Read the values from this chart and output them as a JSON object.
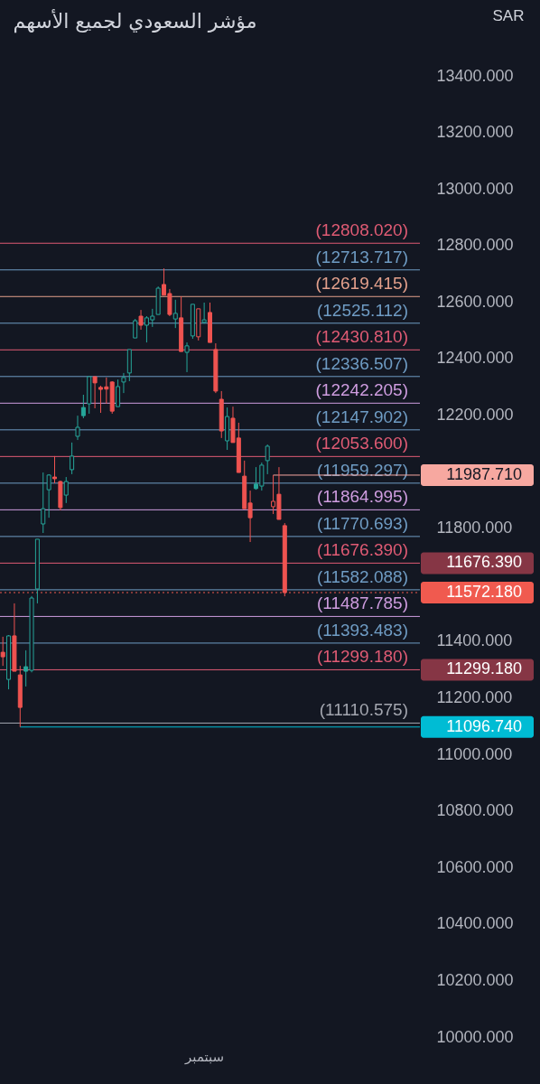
{
  "chart_data": {
    "type": "candlestick",
    "title": "مؤشر السعودي لجميع الأسهم",
    "ylabel": "SAR",
    "categories": [
      null,
      null,
      null,
      null,
      null,
      null,
      null,
      null,
      null,
      null,
      null,
      null,
      null,
      null,
      null,
      null,
      null,
      null,
      null,
      null,
      null,
      null,
      null,
      null,
      null,
      null,
      null,
      null,
      null,
      null,
      null,
      null,
      null,
      null,
      null,
      "سبتمبر",
      null,
      null,
      null,
      null,
      null,
      null,
      null,
      null,
      null,
      null,
      null,
      null,
      null,
      null,
      null,
      null,
      null,
      null,
      null,
      null,
      null,
      null,
      null,
      null,
      null,
      null,
      null,
      null,
      null,
      null,
      null,
      null,
      null,
      null,
      null,
      null,
      null
    ],
    "ohlc": [
      [
        11361,
        11416,
        11313,
        11345
      ],
      [
        11265,
        11422,
        11230,
        11419
      ],
      [
        11419,
        11534,
        11294,
        11294
      ],
      [
        11281,
        11313,
        11096.74,
        11166
      ],
      [
        11310,
        11368,
        11240,
        11294
      ],
      [
        11297,
        11560,
        11290,
        11553
      ],
      [
        11585,
        11761,
        11534,
        11761
      ],
      [
        11815,
        11997,
        11783,
        11869
      ],
      [
        11936,
        11991,
        11837,
        11988
      ],
      [
        11981,
        12055,
        11959,
        11975
      ],
      [
        11965,
        11968,
        11863,
        11873
      ],
      [
        11917,
        11981,
        11889,
        11965
      ],
      [
        12007,
        12103,
        11991,
        12055
      ],
      [
        12125,
        12198,
        12112,
        12157
      ],
      [
        12227,
        12272,
        12189,
        12198
      ],
      [
        12240,
        12336,
        12205,
        12336
      ],
      [
        12336,
        12336,
        12224,
        12314
      ],
      [
        12298,
        12304,
        12208,
        12291
      ],
      [
        12300,
        12333,
        12240,
        12292
      ],
      [
        12317,
        12320,
        12205,
        12214
      ],
      [
        12230,
        12326,
        12230,
        12301
      ],
      [
        12317,
        12349,
        12278,
        12333
      ],
      [
        12349,
        12432,
        12320,
        12432
      ],
      [
        12473,
        12540,
        12473,
        12534
      ],
      [
        12550,
        12572,
        12502,
        12518
      ],
      [
        12518,
        12550,
        12457,
        12544
      ],
      [
        12537,
        12576,
        12512,
        12550
      ],
      [
        12556,
        12655,
        12556,
        12649
      ],
      [
        12662,
        12719,
        12624,
        12624
      ],
      [
        12630,
        12646,
        12550,
        12556
      ],
      [
        12540,
        12608,
        12508,
        12560
      ],
      [
        12544,
        12620,
        12425,
        12425
      ],
      [
        12422,
        12457,
        12352,
        12445
      ],
      [
        12480,
        12592,
        12470,
        12592
      ],
      [
        12477,
        12576,
        12464,
        12576
      ],
      [
        12528,
        12598,
        12524,
        12537
      ],
      [
        12563,
        12598,
        12457,
        12457
      ],
      [
        12432,
        12454,
        12278,
        12285
      ],
      [
        12256,
        12285,
        12119,
        12144
      ],
      [
        12109,
        12227,
        12077,
        12195
      ],
      [
        12189,
        12230,
        12103,
        12103
      ],
      [
        12119,
        12173,
        11997,
        11997
      ],
      [
        11984,
        12039,
        11869,
        11869
      ],
      [
        11889,
        11933,
        11751,
        11837
      ],
      [
        11956,
        12016,
        11936,
        11940
      ],
      [
        11949,
        12032,
        11933,
        12023
      ],
      [
        12039,
        12096,
        11991,
        12090
      ],
      [
        11876,
        11987.71,
        11850,
        11895
      ],
      [
        11920,
        12016,
        11831,
        11831
      ],
      [
        11809,
        11818,
        11559,
        11572.18
      ],
      null,
      null,
      null,
      null,
      null,
      null,
      null,
      null,
      null,
      null,
      null,
      null,
      null,
      null,
      null,
      null,
      null,
      null,
      null,
      null,
      null,
      null,
      null
    ],
    "colors": [
      "#ef5350",
      "#26a69a",
      "#ef5350",
      "#ef5350",
      "#26a69a",
      "#26a69a",
      "#26a69a",
      "#26a69a",
      "#26a69a",
      "#ef5350",
      "#ef5350",
      "#26a69a",
      "#26a69a",
      "#26a69a",
      "#26a69a",
      "#26a69a",
      "#ef5350",
      "#ef5350",
      "#ef5350",
      "#ef5350",
      "#26a69a",
      "#26a69a",
      "#26a69a",
      "#26a69a",
      "#ef5350",
      "#26a69a",
      "#26a69a",
      "#26a69a",
      "#ef5350",
      "#ef5350",
      "#26a69a",
      "#ef5350",
      "#26a69a",
      "#26a69a",
      "#ef5350",
      "#26a69a",
      "#ef5350",
      "#ef5350",
      "#ef5350",
      "#26a69a",
      "#ef5350",
      "#ef5350",
      "#ef5350",
      "#ef5350",
      "#26a69a",
      "#26a69a",
      "#26a69a",
      "#ef5350",
      "#ef5350",
      "#ef5350",
      null,
      null,
      null,
      null,
      null,
      null,
      null,
      null,
      null,
      null,
      null,
      null,
      null,
      null,
      null,
      null,
      null,
      null,
      null,
      null,
      null,
      null,
      null
    ],
    "ylim": [
      10000,
      13400
    ],
    "yticks": [
      {
        "value": 10000,
        "label": "10000.000"
      },
      {
        "value": 10200,
        "label": "10200.000"
      },
      {
        "value": 10400,
        "label": "10400.000"
      },
      {
        "value": 10600,
        "label": "10600.000"
      },
      {
        "value": 10800,
        "label": "10800.000"
      },
      {
        "value": 11000,
        "label": "11000.000"
      },
      {
        "value": 11200,
        "label": "11200.000"
      },
      {
        "value": 11400,
        "label": "11400.000"
      },
      {
        "value": 11800,
        "label": "11800.000"
      },
      {
        "value": 12200,
        "label": "12200.000"
      },
      {
        "value": 12400,
        "label": "12400.000"
      },
      {
        "value": 12600,
        "label": "12600.000"
      },
      {
        "value": 12800,
        "label": "12800.000"
      },
      {
        "value": 13000,
        "label": "13000.000"
      },
      {
        "value": 13200,
        "label": "13200.000"
      },
      {
        "value": 13400,
        "label": "13400.000"
      }
    ],
    "ref_lines": [
      {
        "axis": "y",
        "value": 12808.02,
        "color": "#e05b74"
      },
      {
        "axis": "y",
        "value": 12713.717,
        "color": "#6f9cc4"
      },
      {
        "axis": "y",
        "value": 12619.415,
        "color": "#e3a08c"
      },
      {
        "axis": "y",
        "value": 12525.112,
        "color": "#6f9cc4"
      },
      {
        "axis": "y",
        "value": 12430.81,
        "color": "#e05b74"
      },
      {
        "axis": "y",
        "value": 12336.507,
        "color": "#6f9cc4"
      },
      {
        "axis": "y",
        "value": 12242.205,
        "color": "#cf9de0"
      },
      {
        "axis": "y",
        "value": 12147.902,
        "color": "#6f9cc4"
      },
      {
        "axis": "y",
        "value": 12053.6,
        "color": "#e05b74"
      },
      {
        "axis": "y",
        "value": 11987.71,
        "label": "11987.710",
        "color": "#f7a8a0"
      },
      {
        "axis": "y",
        "value": 11959.297,
        "color": "#6f9cc4"
      },
      {
        "axis": "y",
        "value": 11864.995,
        "color": "#cf9de0"
      },
      {
        "axis": "y",
        "value": 11770.693,
        "color": "#6f9cc4"
      },
      {
        "axis": "y",
        "value": 11676.39,
        "label": "11676.390",
        "color": "#e05b74"
      },
      {
        "axis": "y",
        "value": 11582.088,
        "color": "#6f9cc4"
      },
      {
        "axis": "y",
        "value": 11572.18,
        "label": "11572.180",
        "color": "#f05a4f",
        "line_style": "dotted"
      },
      {
        "axis": "y",
        "value": 11487.785,
        "color": "#cf9de0"
      },
      {
        "axis": "y",
        "value": 11393.483,
        "color": "#6f9cc4"
      },
      {
        "axis": "y",
        "value": 11299.18,
        "label": "11299.180",
        "color": "#e05b74"
      },
      {
        "axis": "y",
        "value": 11110.575,
        "color": "#a3a6af"
      },
      {
        "axis": "y",
        "value": 11096.74,
        "label": "11096.740",
        "color": "#00bcd4"
      }
    ],
    "annotations": [
      {
        "text": "(12808.020)",
        "y": 12808.02
      },
      {
        "text": "(12713.717)",
        "y": 12713.717
      },
      {
        "text": "(12619.415)",
        "y": 12619.415
      },
      {
        "text": "(12525.112)",
        "y": 12525.112
      },
      {
        "text": "(12430.810)",
        "y": 12430.81
      },
      {
        "text": "(12336.507)",
        "y": 12336.507
      },
      {
        "text": "(12242.205)",
        "y": 12242.205
      },
      {
        "text": "(12147.902)",
        "y": 12147.902
      },
      {
        "text": "(12053.600)",
        "y": 12053.6
      },
      {
        "text": "(11959.297)",
        "y": 11959.297
      },
      {
        "text": "(11864.995)",
        "y": 11864.995
      },
      {
        "text": "(11770.693)",
        "y": 11770.693
      },
      {
        "text": "(11676.390)",
        "y": 11676.39
      },
      {
        "text": "(11582.088)",
        "y": 11582.088
      },
      {
        "text": "(11487.785)",
        "y": 11487.785
      },
      {
        "text": "(11393.483)",
        "y": 11393.483
      },
      {
        "text": "(11299.180)",
        "y": 11299.18
      },
      {
        "text": "(11110.575)",
        "y": 11110.575
      }
    ]
  }
}
